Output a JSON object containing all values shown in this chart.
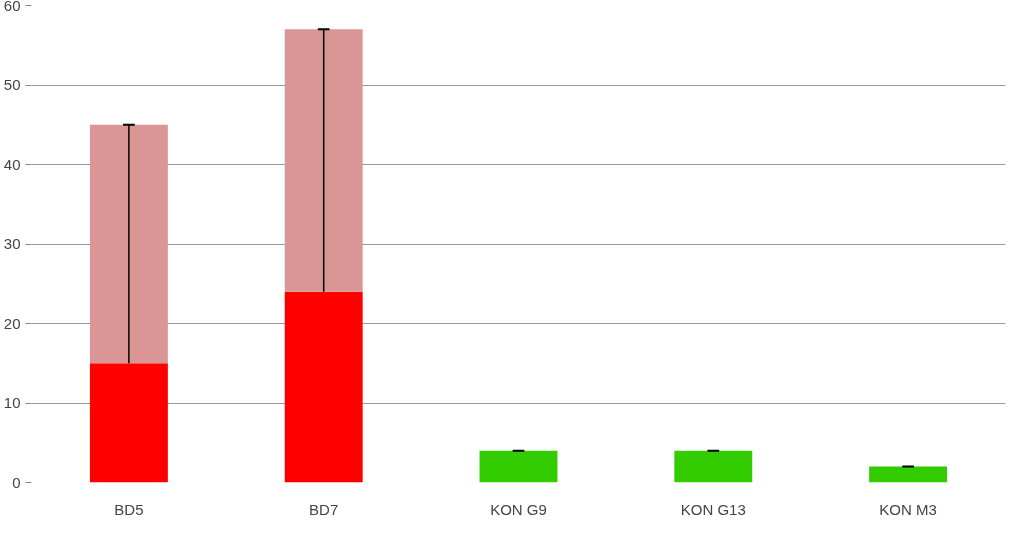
{
  "chart_data": {
    "type": "bar",
    "stacked": true,
    "categories": [
      "BD5",
      "BD7",
      "KON G9",
      "KON G13",
      "KON M3"
    ],
    "series": [
      {
        "colors": [
          "#ff0000",
          "#ff0000",
          "#33cc00",
          "#33cc00",
          "#33cc00"
        ],
        "values": [
          15,
          24,
          4,
          4,
          2
        ],
        "errors": [
          [
            15,
            45
          ],
          [
            24,
            57
          ],
          [
            4,
            4
          ],
          [
            4,
            4
          ],
          [
            2,
            2
          ]
        ]
      },
      {
        "color": "#d99694",
        "values": [
          30,
          33,
          0,
          0,
          0
        ]
      }
    ],
    "ylim": [
      0,
      60
    ],
    "yticks": [
      0,
      10,
      20,
      30,
      40,
      50,
      60
    ],
    "grid": "y"
  }
}
